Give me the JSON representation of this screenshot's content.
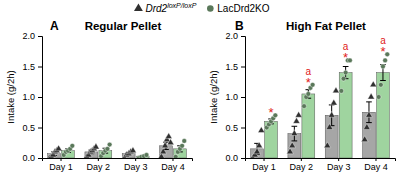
{
  "chart_data": [
    {
      "type": "bar",
      "panel": "A",
      "title": "Regular Pellet",
      "ylabel": "Intake (g/2h)",
      "categories": [
        "Day 1",
        "Day 2",
        "Day 3",
        "Day 4"
      ],
      "ylim": [
        0,
        2
      ],
      "yticks": [
        {
          "value": 0,
          "label": "0.0"
        },
        {
          "value": 0.5,
          "label": "0.5"
        },
        {
          "value": 1,
          "label": "1.0"
        },
        {
          "value": 1.5,
          "label": "1.5"
        },
        {
          "value": 2,
          "label": "2.0"
        }
      ],
      "legend": "top",
      "series": [
        {
          "name": "Drd2loxP/loxP",
          "color": "#a6a6a6",
          "marker": "triangle",
          "values": [
            0.07,
            0.1,
            0.07,
            0.2
          ],
          "errors": [
            0.03,
            0.03,
            0.02,
            0.06
          ],
          "points": [
            [
              0.0,
              0.02,
              0.05,
              0.1,
              0.12,
              0.15
            ],
            [
              0.02,
              0.05,
              0.1,
              0.12,
              0.15,
              0.18
            ],
            [
              0.0,
              0.05,
              0.07,
              0.1,
              0.12
            ],
            [
              0.02,
              0.1,
              0.2,
              0.3,
              0.35,
              0.25
            ]
          ]
        },
        {
          "name": "LacDrd2KO",
          "color": "#9fd49f",
          "marker": "circle",
          "values": [
            0.12,
            0.12,
            0.03,
            0.15
          ],
          "errors": [
            0.03,
            0.04,
            0.01,
            0.05
          ],
          "points": [
            [
              0.05,
              0.1,
              0.12,
              0.15,
              0.2
            ],
            [
              0.03,
              0.08,
              0.12,
              0.15,
              0.22
            ],
            [
              0.0,
              0.02,
              0.03,
              0.05
            ],
            [
              0.02,
              0.1,
              0.15,
              0.2,
              0.28
            ]
          ]
        }
      ]
    },
    {
      "type": "bar",
      "panel": "B",
      "title": "High Fat Pellet",
      "ylabel": "Intake (g/2h)",
      "categories": [
        "Day 1",
        "Day 2",
        "Day 3",
        "Day 4"
      ],
      "ylim": [
        0,
        2
      ],
      "yticks": [
        {
          "value": 0,
          "label": "0.0"
        },
        {
          "value": 0.5,
          "label": "0.5"
        },
        {
          "value": 1,
          "label": "1.0"
        },
        {
          "value": 1.5,
          "label": "1.5"
        },
        {
          "value": 2,
          "label": "2.0"
        }
      ],
      "series": [
        {
          "color": "#a6a6a6",
          "marker": "triangle",
          "values": [
            0.15,
            0.4,
            0.7,
            0.75
          ],
          "errors": [
            0.09,
            0.12,
            0.17,
            0.17
          ],
          "points": [
            [
              0.0,
              0.05,
              0.1,
              0.2,
              0.45
            ],
            [
              0.1,
              0.2,
              0.4,
              0.6,
              0.7
            ],
            [
              0.2,
              0.5,
              0.7,
              0.9,
              1.1
            ],
            [
              0.3,
              0.5,
              0.7,
              1.0,
              1.2
            ]
          ]
        },
        {
          "color": "#9fd49f",
          "marker": "circle",
          "values": [
            0.6,
            1.05,
            1.4,
            1.4
          ],
          "errors": [
            0.04,
            0.07,
            0.1,
            0.13
          ],
          "points": [
            [
              0.5,
              0.55,
              0.6,
              0.65,
              0.7
            ],
            [
              0.85,
              1.0,
              1.05,
              1.15,
              1.2
            ],
            [
              1.1,
              1.3,
              1.4,
              1.6,
              1.6
            ],
            [
              1.0,
              1.2,
              1.5,
              1.6,
              1.7
            ]
          ],
          "annotations": [
            [
              "*"
            ],
            [
              "a",
              "*"
            ],
            [
              "a",
              "*"
            ],
            [
              "a",
              "*"
            ]
          ]
        }
      ]
    }
  ]
}
